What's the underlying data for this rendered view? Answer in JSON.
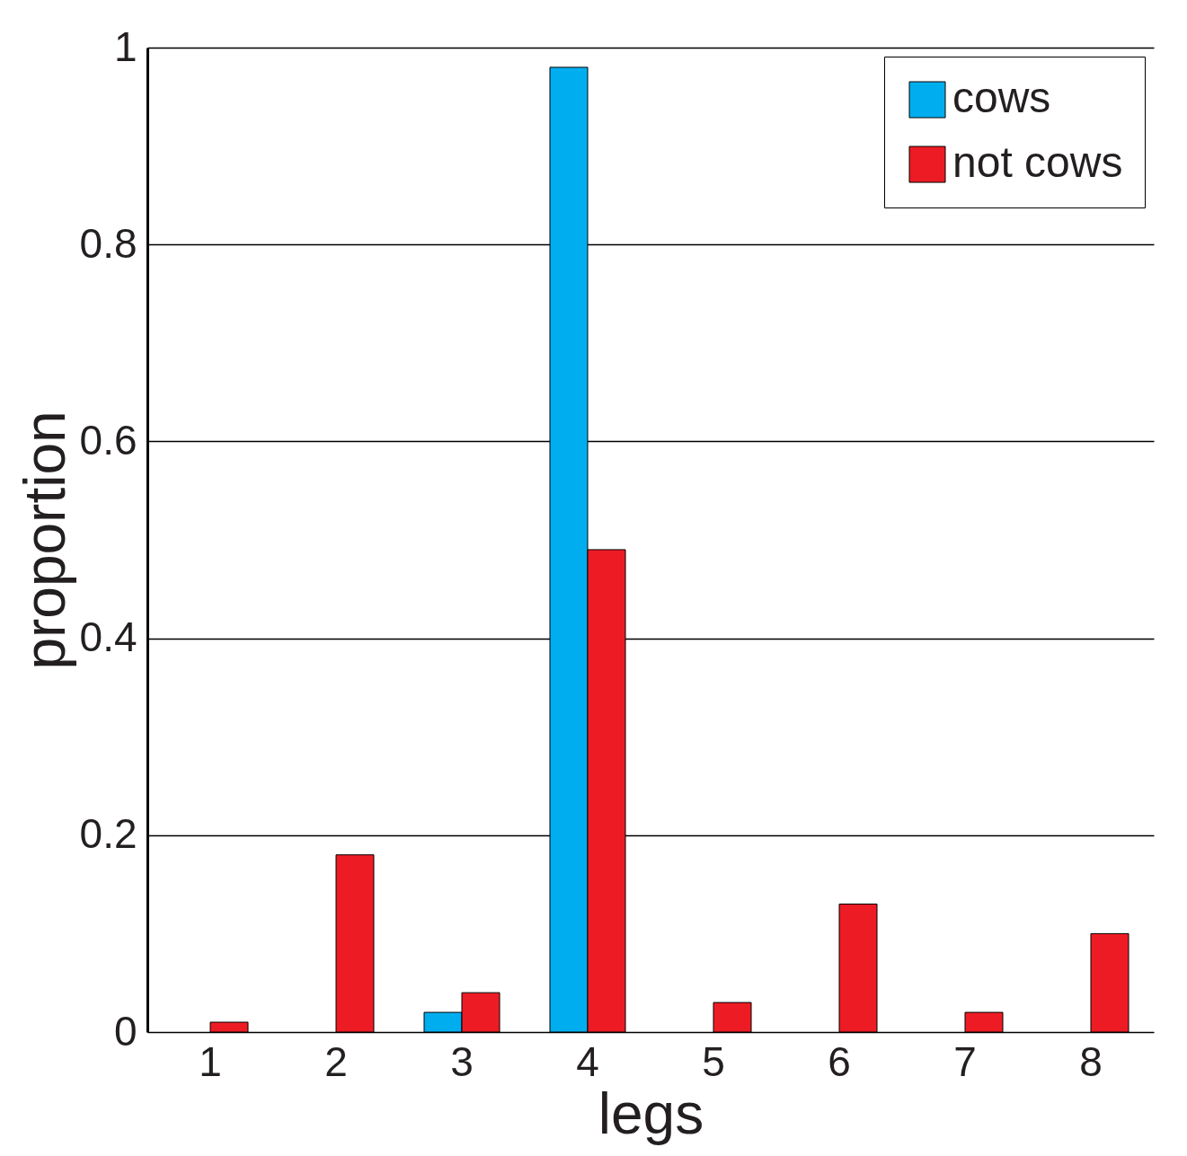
{
  "chart_data": {
    "type": "bar",
    "xlabel": "legs",
    "ylabel": "proportion",
    "categories": [
      "1",
      "2",
      "3",
      "4",
      "5",
      "6",
      "7",
      "8"
    ],
    "series": [
      {
        "name": "cows",
        "color": "#00aeef",
        "values": [
          0,
          0,
          0.02,
          0.98,
          0,
          0,
          0,
          0
        ]
      },
      {
        "name": "not cows",
        "color": "#ed1c24",
        "values": [
          0.01,
          0.18,
          0.04,
          0.49,
          0.03,
          0.13,
          0.02,
          0.1
        ]
      }
    ],
    "ylim": [
      0,
      1
    ],
    "yticks": [
      0,
      0.2,
      0.4,
      0.6,
      0.8,
      1
    ],
    "grid": "y",
    "legend": "top right"
  }
}
